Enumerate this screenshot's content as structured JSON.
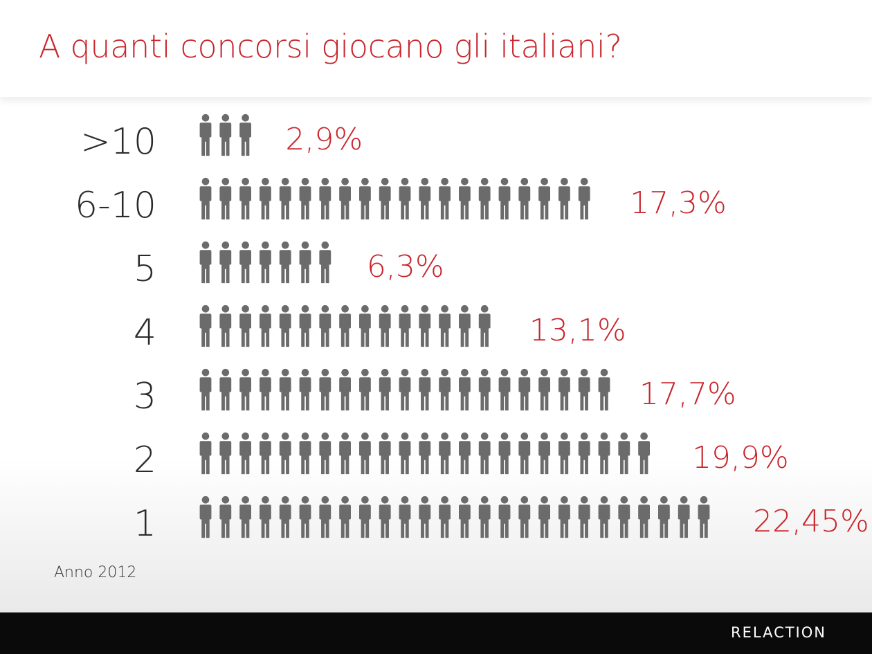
{
  "title": "A quanti concorsi giocano gli italiani?",
  "note": "Anno 2012",
  "brand": "RELACTION",
  "icon": "person-icon",
  "colors": {
    "accent": "#c8262c",
    "icon": "#6b6b6b",
    "text": "#2b2b2b",
    "footer": "#0a0a0a"
  },
  "chart_data": {
    "type": "bar",
    "orientation": "horizontal",
    "categories": [
      ">10",
      "6-10",
      "5",
      "4",
      "3",
      "2",
      "1"
    ],
    "values": [
      2.9,
      17.3,
      6.3,
      13.1,
      17.7,
      19.9,
      22.45
    ],
    "value_labels": [
      "2,9%",
      "17,3%",
      "6,3%",
      "13,1%",
      "17,7%",
      "19,9%",
      "22,45%"
    ],
    "title": "",
    "xlabel": "",
    "ylabel": ""
  }
}
